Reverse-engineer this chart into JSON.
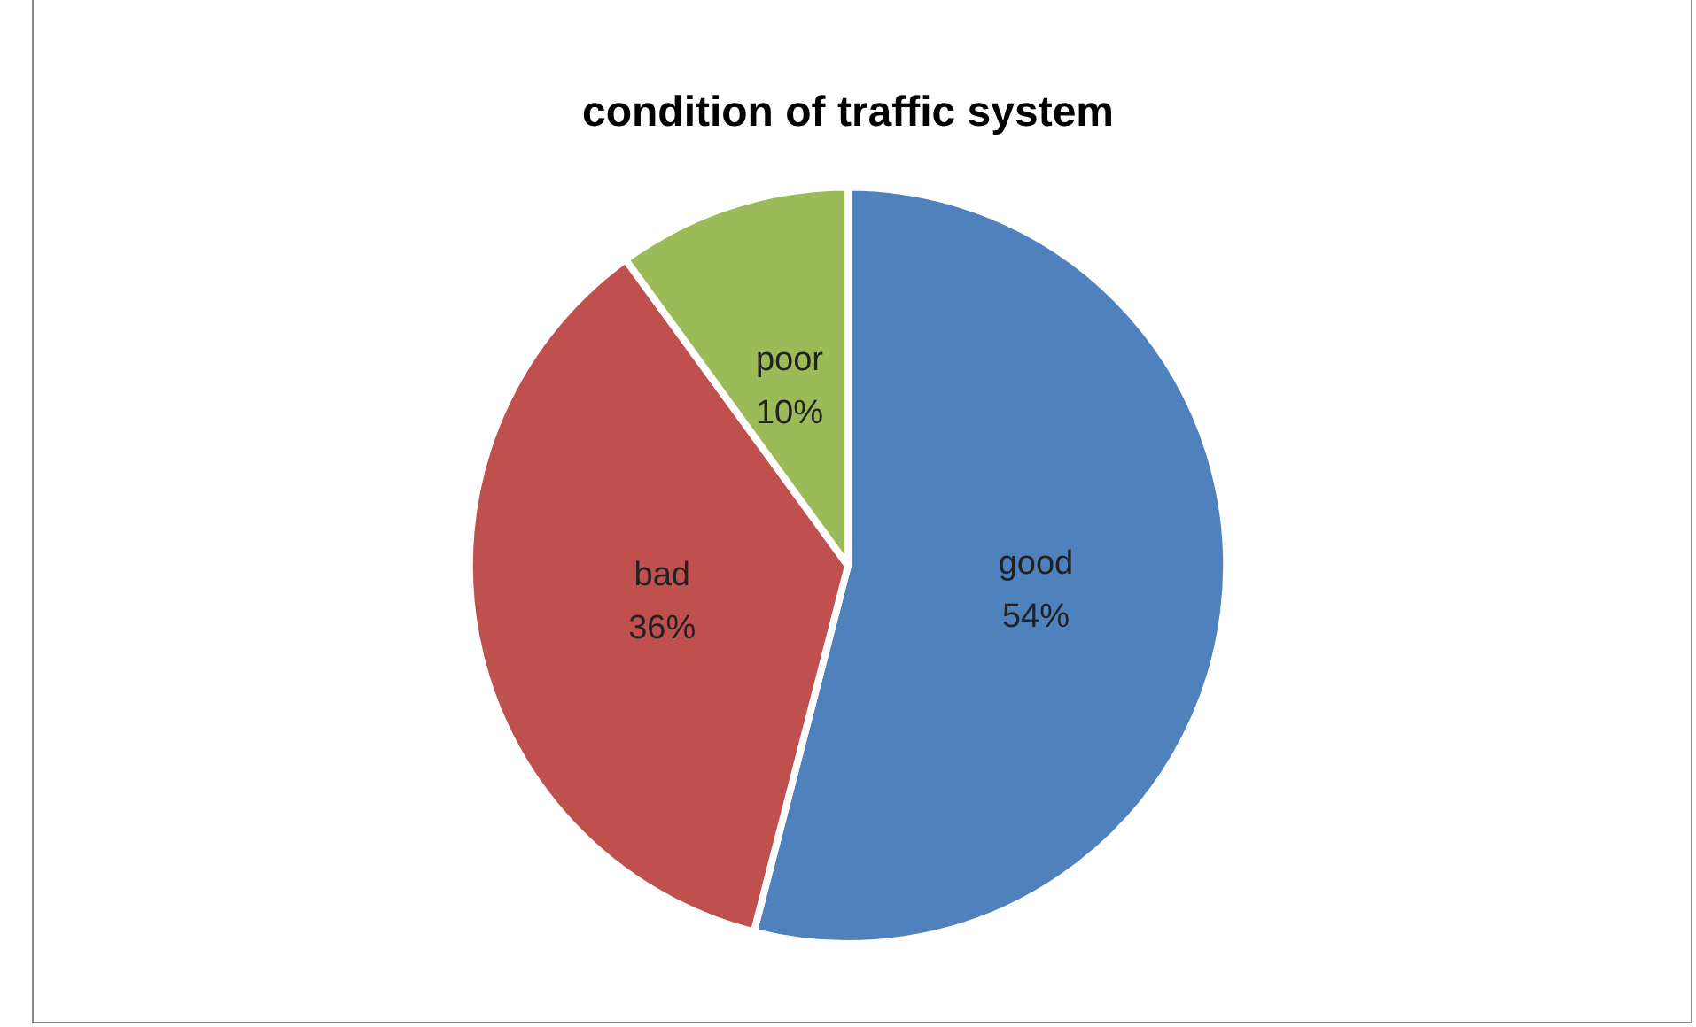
{
  "chart_data": {
    "type": "pie",
    "title": "condition of traffic system",
    "categories": [
      "good",
      "bad",
      "poor"
    ],
    "values": [
      54,
      36,
      10
    ],
    "colors": [
      "#4f81bd",
      "#c0504d",
      "#9bbb59"
    ],
    "value_labels": [
      "54%",
      "36%",
      "10%"
    ],
    "legend": false
  }
}
